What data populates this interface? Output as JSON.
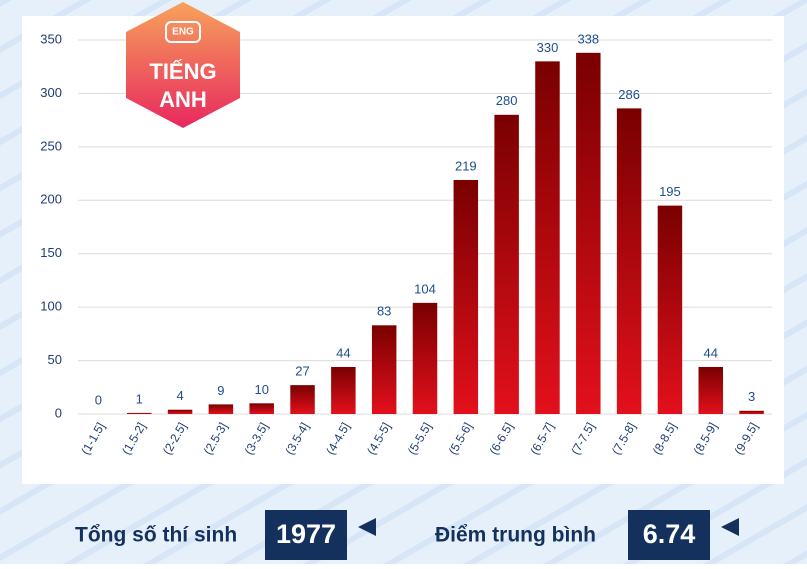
{
  "chart_data": {
    "type": "bar",
    "badge": {
      "tag": "ENG",
      "title_line1": "TIẾNG",
      "title_line2": "ANH"
    },
    "categories": [
      "(1-1.5]",
      "(1.5-2]",
      "(2-2.5]",
      "(2.5-3]",
      "(3-3.5]",
      "(3.5-4]",
      "(4-4.5]",
      "(4.5-5]",
      "(5-5.5]",
      "(5.5-6]",
      "(6-6.5]",
      "(6.5-7]",
      "(7-7.5]",
      "(7.5-8]",
      "(8-8.5]",
      "(8.5-9]",
      "(9-9.5]"
    ],
    "values": [
      0,
      1,
      4,
      9,
      10,
      27,
      44,
      83,
      104,
      219,
      280,
      330,
      338,
      286,
      195,
      44,
      3
    ],
    "color": "#e3101c",
    "ylim": [
      0,
      350
    ],
    "yticks": [
      0,
      50,
      100,
      150,
      200,
      250,
      300,
      350
    ],
    "grid": true,
    "summary": {
      "total_label": "Tổng số thí sinh",
      "total_value": "1977",
      "mean_label": "Điểm trung bình",
      "mean_value": "6.74"
    }
  }
}
